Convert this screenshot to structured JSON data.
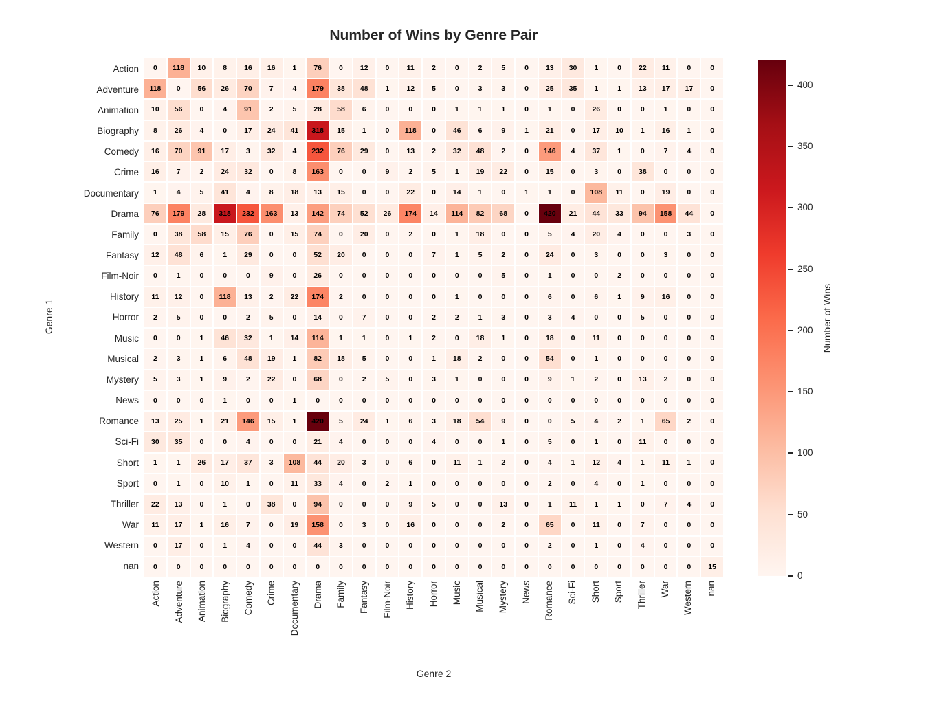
{
  "title": "Number of Wins by Genre Pair",
  "colors": {
    "background": "#ffffff",
    "text": "#262626",
    "annotation_text": "#000000",
    "gridline": "#ffffff",
    "colormap_name": "Reds",
    "colormap_stops": [
      "#fff5f0",
      "#fee0d2",
      "#fcbba1",
      "#fc9272",
      "#fb6a4a",
      "#ef3b2c",
      "#cb181d",
      "#a50f15",
      "#67000d"
    ]
  },
  "chart_data": {
    "type": "heatmap",
    "title": "Number of Wins by Genre Pair",
    "xlabel": "Genre 2",
    "ylabel": "Genre 1",
    "colorbar_label": "Number of Wins",
    "colorbar_ticks": [
      0,
      50,
      100,
      150,
      200,
      250,
      300,
      350,
      400
    ],
    "vmin": 0,
    "vmax": 420,
    "grid": false,
    "legend_position": "right-colorbar",
    "categories": [
      "Action",
      "Adventure",
      "Animation",
      "Biography",
      "Comedy",
      "Crime",
      "Documentary",
      "Drama",
      "Family",
      "Fantasy",
      "Film-Noir",
      "History",
      "Horror",
      "Music",
      "Musical",
      "Mystery",
      "News",
      "Romance",
      "Sci-Fi",
      "Short",
      "Sport",
      "Thriller",
      "War",
      "Western",
      "nan"
    ],
    "matrix": [
      [
        0,
        118,
        10,
        8,
        16,
        16,
        1,
        76,
        0,
        12,
        0,
        11,
        2,
        0,
        2,
        5,
        0,
        13,
        30,
        1,
        0,
        22,
        11,
        0,
        0
      ],
      [
        118,
        0,
        56,
        26,
        70,
        7,
        4,
        179,
        38,
        48,
        1,
        12,
        5,
        0,
        3,
        3,
        0,
        25,
        35,
        1,
        1,
        13,
        17,
        17,
        0
      ],
      [
        10,
        56,
        0,
        4,
        91,
        2,
        5,
        28,
        58,
        6,
        0,
        0,
        0,
        1,
        1,
        1,
        0,
        1,
        0,
        26,
        0,
        0,
        1,
        0,
        0
      ],
      [
        8,
        26,
        4,
        0,
        17,
        24,
        41,
        318,
        15,
        1,
        0,
        118,
        0,
        46,
        6,
        9,
        1,
        21,
        0,
        17,
        10,
        1,
        16,
        1,
        0
      ],
      [
        16,
        70,
        91,
        17,
        3,
        32,
        4,
        232,
        76,
        29,
        0,
        13,
        2,
        32,
        48,
        2,
        0,
        146,
        4,
        37,
        1,
        0,
        7,
        4,
        0
      ],
      [
        16,
        7,
        2,
        24,
        32,
        0,
        8,
        163,
        0,
        0,
        9,
        2,
        5,
        1,
        19,
        22,
        0,
        15,
        0,
        3,
        0,
        38,
        0,
        0,
        0
      ],
      [
        1,
        4,
        5,
        41,
        4,
        8,
        18,
        13,
        15,
        0,
        0,
        22,
        0,
        14,
        1,
        0,
        1,
        1,
        0,
        108,
        11,
        0,
        19,
        0,
        0
      ],
      [
        76,
        179,
        28,
        318,
        232,
        163,
        13,
        142,
        74,
        52,
        26,
        174,
        14,
        114,
        82,
        68,
        0,
        420,
        21,
        44,
        33,
        94,
        158,
        44,
        0
      ],
      [
        0,
        38,
        58,
        15,
        76,
        0,
        15,
        74,
        0,
        20,
        0,
        2,
        0,
        1,
        18,
        0,
        0,
        5,
        4,
        20,
        4,
        0,
        0,
        3,
        0
      ],
      [
        12,
        48,
        6,
        1,
        29,
        0,
        0,
        52,
        20,
        0,
        0,
        0,
        7,
        1,
        5,
        2,
        0,
        24,
        0,
        3,
        0,
        0,
        3,
        0,
        0
      ],
      [
        0,
        1,
        0,
        0,
        0,
        9,
        0,
        26,
        0,
        0,
        0,
        0,
        0,
        0,
        0,
        5,
        0,
        1,
        0,
        0,
        2,
        0,
        0,
        0,
        0
      ],
      [
        11,
        12,
        0,
        118,
        13,
        2,
        22,
        174,
        2,
        0,
        0,
        0,
        0,
        1,
        0,
        0,
        0,
        6,
        0,
        6,
        1,
        9,
        16,
        0,
        0
      ],
      [
        2,
        5,
        0,
        0,
        2,
        5,
        0,
        14,
        0,
        7,
        0,
        0,
        2,
        2,
        1,
        3,
        0,
        3,
        4,
        0,
        0,
        5,
        0,
        0,
        0
      ],
      [
        0,
        0,
        1,
        46,
        32,
        1,
        14,
        114,
        1,
        1,
        0,
        1,
        2,
        0,
        18,
        1,
        0,
        18,
        0,
        11,
        0,
        0,
        0,
        0,
        0
      ],
      [
        2,
        3,
        1,
        6,
        48,
        19,
        1,
        82,
        18,
        5,
        0,
        0,
        1,
        18,
        2,
        0,
        0,
        54,
        0,
        1,
        0,
        0,
        0,
        0,
        0
      ],
      [
        5,
        3,
        1,
        9,
        2,
        22,
        0,
        68,
        0,
        2,
        5,
        0,
        3,
        1,
        0,
        0,
        0,
        9,
        1,
        2,
        0,
        13,
        2,
        0,
        0
      ],
      [
        0,
        0,
        0,
        1,
        0,
        0,
        1,
        0,
        0,
        0,
        0,
        0,
        0,
        0,
        0,
        0,
        0,
        0,
        0,
        0,
        0,
        0,
        0,
        0,
        0
      ],
      [
        13,
        25,
        1,
        21,
        146,
        15,
        1,
        420,
        5,
        24,
        1,
        6,
        3,
        18,
        54,
        9,
        0,
        0,
        5,
        4,
        2,
        1,
        65,
        2,
        0
      ],
      [
        30,
        35,
        0,
        0,
        4,
        0,
        0,
        21,
        4,
        0,
        0,
        0,
        4,
        0,
        0,
        1,
        0,
        5,
        0,
        1,
        0,
        11,
        0,
        0,
        0
      ],
      [
        1,
        1,
        26,
        17,
        37,
        3,
        108,
        44,
        20,
        3,
        0,
        6,
        0,
        11,
        1,
        2,
        0,
        4,
        1,
        12,
        4,
        1,
        11,
        1,
        0
      ],
      [
        0,
        1,
        0,
        10,
        1,
        0,
        11,
        33,
        4,
        0,
        2,
        1,
        0,
        0,
        0,
        0,
        0,
        2,
        0,
        4,
        0,
        1,
        0,
        0,
        0
      ],
      [
        22,
        13,
        0,
        1,
        0,
        38,
        0,
        94,
        0,
        0,
        0,
        9,
        5,
        0,
        0,
        13,
        0,
        1,
        11,
        1,
        1,
        0,
        7,
        4,
        0
      ],
      [
        11,
        17,
        1,
        16,
        7,
        0,
        19,
        158,
        0,
        3,
        0,
        16,
        0,
        0,
        0,
        2,
        0,
        65,
        0,
        11,
        0,
        7,
        0,
        0,
        0
      ],
      [
        0,
        17,
        0,
        1,
        4,
        0,
        0,
        44,
        3,
        0,
        0,
        0,
        0,
        0,
        0,
        0,
        0,
        2,
        0,
        1,
        0,
        4,
        0,
        0,
        0
      ],
      [
        0,
        0,
        0,
        0,
        0,
        0,
        0,
        0,
        0,
        0,
        0,
        0,
        0,
        0,
        0,
        0,
        0,
        0,
        0,
        0,
        0,
        0,
        0,
        0,
        15
      ]
    ]
  }
}
